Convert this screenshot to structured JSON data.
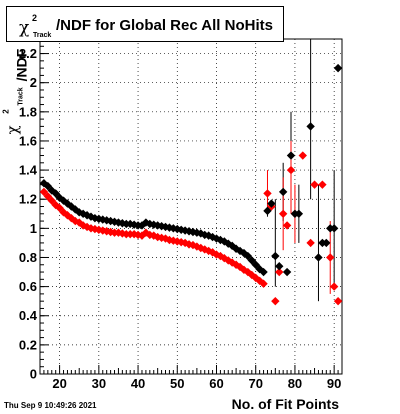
{
  "title": {
    "symbol": "χ",
    "superscript": "2",
    "subscript": "Track",
    "text": "/NDF for Global Rec All NoHits"
  },
  "timestamp": "Thu Sep  9 10:49:26 2021",
  "colors": {
    "series_black": "#000000",
    "series_red": "#ff0000",
    "grid": "#000000"
  },
  "chart_data": {
    "type": "scatter",
    "xlabel": "No. of Fit Points",
    "ylabel": {
      "symbol": "χ",
      "superscript": "2",
      "subscript": "Track",
      "text": "/NDF"
    },
    "xlim": [
      15,
      92
    ],
    "ylim": [
      0,
      2.3
    ],
    "xticks": [
      20,
      30,
      40,
      50,
      60,
      70,
      80,
      90
    ],
    "yticks": [
      0,
      0.2,
      0.4,
      0.6,
      0.8,
      1,
      1.2,
      1.4,
      1.6,
      1.8,
      2,
      2.2
    ],
    "grid": true,
    "series": [
      {
        "color": "black",
        "points": [
          [
            16,
            1.31
          ],
          [
            17,
            1.29
          ],
          [
            18,
            1.26
          ],
          [
            19,
            1.24
          ],
          [
            20,
            1.21
          ],
          [
            21,
            1.19
          ],
          [
            22,
            1.17
          ],
          [
            23,
            1.15
          ],
          [
            24,
            1.13
          ],
          [
            25,
            1.11
          ],
          [
            26,
            1.1
          ],
          [
            27,
            1.09
          ],
          [
            28,
            1.08
          ],
          [
            29,
            1.07
          ],
          [
            30,
            1.065
          ],
          [
            31,
            1.06
          ],
          [
            32,
            1.055
          ],
          [
            33,
            1.05
          ],
          [
            34,
            1.045
          ],
          [
            35,
            1.04
          ],
          [
            36,
            1.035
          ],
          [
            37,
            1.03
          ],
          [
            38,
            1.03
          ],
          [
            39,
            1.025
          ],
          [
            40,
            1.02
          ],
          [
            41,
            1.02
          ],
          [
            42,
            1.04
          ],
          [
            43,
            1.03
          ],
          [
            44,
            1.025
          ],
          [
            45,
            1.02
          ],
          [
            46,
            1.015
          ],
          [
            47,
            1.01
          ],
          [
            48,
            1.005
          ],
          [
            49,
            1.0
          ],
          [
            50,
            0.995
          ],
          [
            51,
            0.99
          ],
          [
            52,
            0.985
          ],
          [
            53,
            0.98
          ],
          [
            54,
            0.975
          ],
          [
            55,
            0.97
          ],
          [
            56,
            0.965
          ],
          [
            57,
            0.955
          ],
          [
            58,
            0.95
          ],
          [
            59,
            0.94
          ],
          [
            60,
            0.93
          ],
          [
            61,
            0.92
          ],
          [
            62,
            0.91
          ],
          [
            63,
            0.895
          ],
          [
            64,
            0.88
          ],
          [
            65,
            0.86
          ],
          [
            66,
            0.845
          ],
          [
            67,
            0.83
          ],
          [
            68,
            0.81
          ],
          [
            69,
            0.78
          ],
          [
            70,
            0.75
          ],
          [
            71,
            0.72
          ],
          [
            72,
            0.7
          ],
          [
            73,
            1.12
          ],
          [
            74,
            1.17
          ],
          [
            75,
            0.81
          ],
          [
            76,
            0.74
          ],
          [
            77,
            1.25
          ],
          [
            78,
            0.7
          ],
          [
            79,
            1.5
          ],
          [
            80,
            1.1
          ],
          [
            81,
            1.1
          ],
          [
            84,
            1.7
          ],
          [
            86,
            0.8
          ],
          [
            87,
            0.9
          ],
          [
            88,
            0.9
          ],
          [
            89,
            1.0
          ],
          [
            90,
            1.0
          ],
          [
            91,
            2.1
          ]
        ]
      },
      {
        "color": "red",
        "points": [
          [
            16,
            1.25
          ],
          [
            17,
            1.22
          ],
          [
            18,
            1.19
          ],
          [
            19,
            1.16
          ],
          [
            20,
            1.14
          ],
          [
            21,
            1.11
          ],
          [
            22,
            1.09
          ],
          [
            23,
            1.07
          ],
          [
            24,
            1.05
          ],
          [
            25,
            1.04
          ],
          [
            26,
            1.02
          ],
          [
            27,
            1.01
          ],
          [
            28,
            1.0
          ],
          [
            29,
            0.995
          ],
          [
            30,
            0.99
          ],
          [
            31,
            0.985
          ],
          [
            32,
            0.98
          ],
          [
            33,
            0.975
          ],
          [
            34,
            0.97
          ],
          [
            35,
            0.97
          ],
          [
            36,
            0.965
          ],
          [
            37,
            0.96
          ],
          [
            38,
            0.96
          ],
          [
            39,
            0.96
          ],
          [
            40,
            0.955
          ],
          [
            41,
            0.95
          ],
          [
            42,
            0.97
          ],
          [
            43,
            0.955
          ],
          [
            44,
            0.95
          ],
          [
            45,
            0.94
          ],
          [
            46,
            0.935
          ],
          [
            47,
            0.93
          ],
          [
            48,
            0.92
          ],
          [
            49,
            0.915
          ],
          [
            50,
            0.91
          ],
          [
            51,
            0.905
          ],
          [
            52,
            0.9
          ],
          [
            53,
            0.89
          ],
          [
            54,
            0.885
          ],
          [
            55,
            0.875
          ],
          [
            56,
            0.865
          ],
          [
            57,
            0.855
          ],
          [
            58,
            0.845
          ],
          [
            59,
            0.835
          ],
          [
            60,
            0.82
          ],
          [
            61,
            0.81
          ],
          [
            62,
            0.795
          ],
          [
            63,
            0.78
          ],
          [
            64,
            0.765
          ],
          [
            65,
            0.75
          ],
          [
            66,
            0.735
          ],
          [
            67,
            0.715
          ],
          [
            68,
            0.7
          ],
          [
            69,
            0.68
          ],
          [
            70,
            0.66
          ],
          [
            71,
            0.64
          ],
          [
            72,
            0.62
          ],
          [
            73,
            1.24
          ],
          [
            74,
            1.15
          ],
          [
            75,
            0.5
          ],
          [
            76,
            0.7
          ],
          [
            77,
            1.1
          ],
          [
            78,
            1.02
          ],
          [
            79,
            1.4
          ],
          [
            80,
            1.1
          ],
          [
            82,
            1.5
          ],
          [
            84,
            0.9
          ],
          [
            85,
            1.3
          ],
          [
            87,
            1.3
          ],
          [
            89,
            0.8
          ],
          [
            90,
            0.6
          ],
          [
            91,
            0.5
          ]
        ]
      }
    ],
    "error_bars": [
      {
        "color": "black",
        "x": 73,
        "low": 1.08,
        "high": 1.18
      },
      {
        "color": "black",
        "x": 75,
        "low": 0.6,
        "high": 1.2
      },
      {
        "color": "black",
        "x": 77,
        "low": 1.05,
        "high": 1.45
      },
      {
        "color": "black",
        "x": 79,
        "low": 1.2,
        "high": 1.8
      },
      {
        "color": "black",
        "x": 81,
        "low": 0.9,
        "high": 1.3
      },
      {
        "color": "black",
        "x": 84,
        "low": 1.2,
        "high": 2.3
      },
      {
        "color": "black",
        "x": 86,
        "low": 0.5,
        "high": 1.3
      },
      {
        "color": "black",
        "x": 90,
        "low": 0.6,
        "high": 1.4
      },
      {
        "color": "red",
        "x": 73,
        "low": 1.1,
        "high": 1.4
      },
      {
        "color": "red",
        "x": 77,
        "low": 0.85,
        "high": 1.35
      },
      {
        "color": "red",
        "x": 79,
        "low": 1.1,
        "high": 1.6
      },
      {
        "color": "red",
        "x": 80,
        "low": 0.9,
        "high": 1.3
      },
      {
        "color": "red",
        "x": 89,
        "low": 0.55,
        "high": 1.05
      }
    ]
  }
}
